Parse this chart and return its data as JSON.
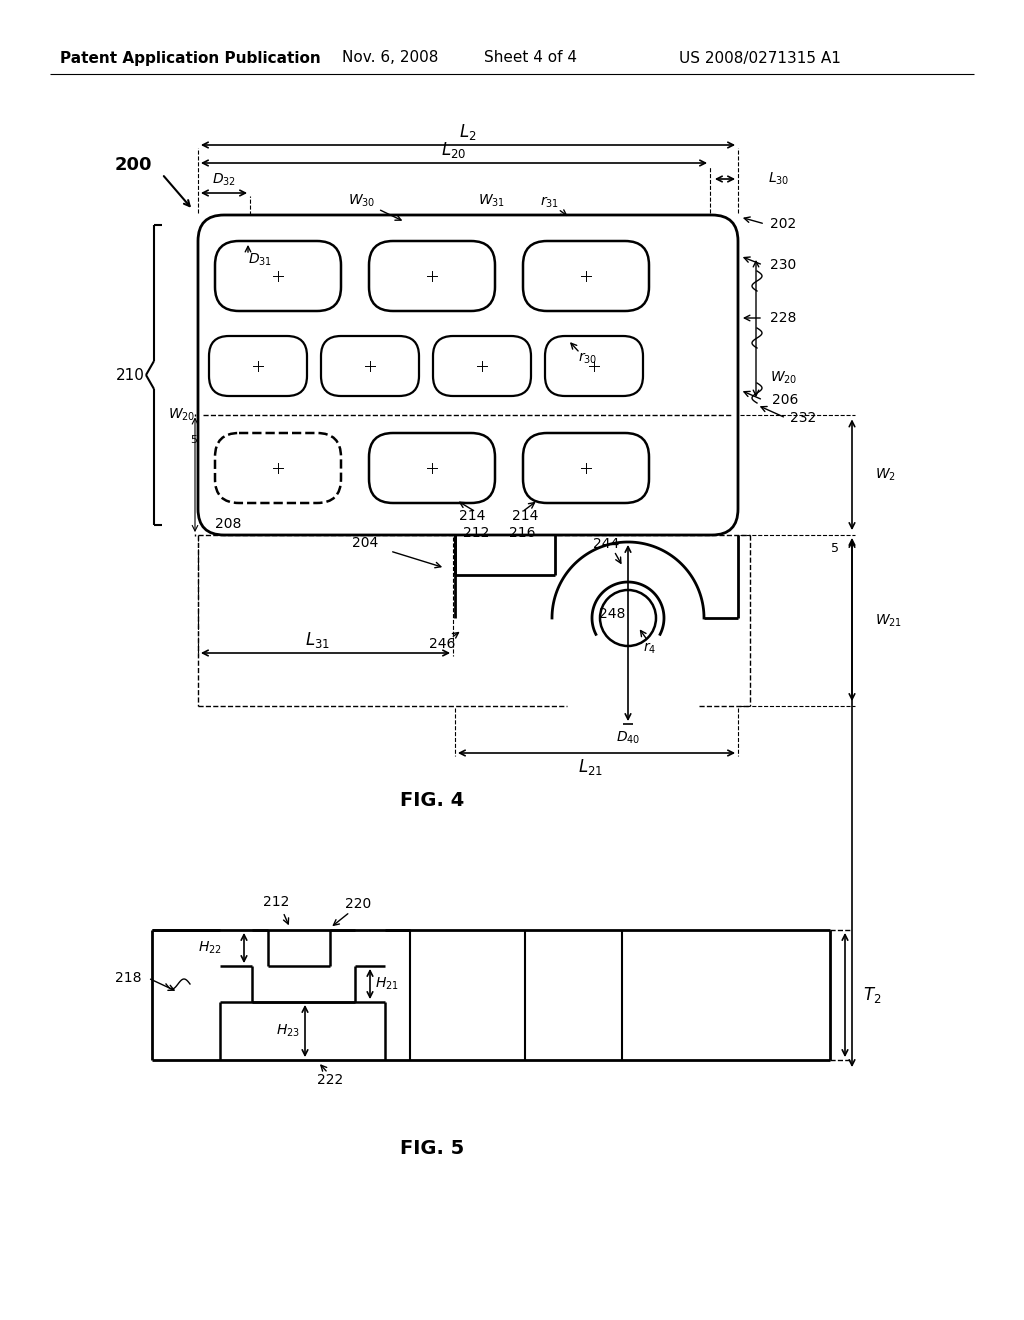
{
  "bg_color": "#ffffff",
  "header_left": "Patent Application Publication",
  "header_mid1": "Nov. 6, 2008",
  "header_mid2": "Sheet 4 of 4",
  "header_right": "US 2008/0271315 A1",
  "fig4_caption": "FIG. 4",
  "fig5_caption": "FIG. 5"
}
